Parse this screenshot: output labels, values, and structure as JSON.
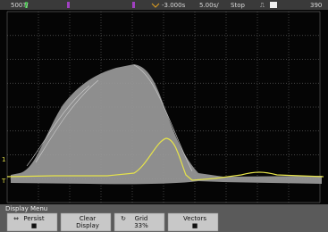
{
  "status_bar": {
    "items": [
      "500?/",
      "-3.000s",
      "5.00s/",
      "Stop",
      "390"
    ]
  },
  "menu": {
    "title": "Display Menu",
    "softkeys": [
      {
        "line1": "Persist",
        "line2": "■"
      },
      {
        "line1": "Clear",
        "line2": "Display"
      },
      {
        "line1": "Grid",
        "line2": "33%"
      },
      {
        "line1": "Vectors",
        "line2": "■"
      }
    ]
  }
}
